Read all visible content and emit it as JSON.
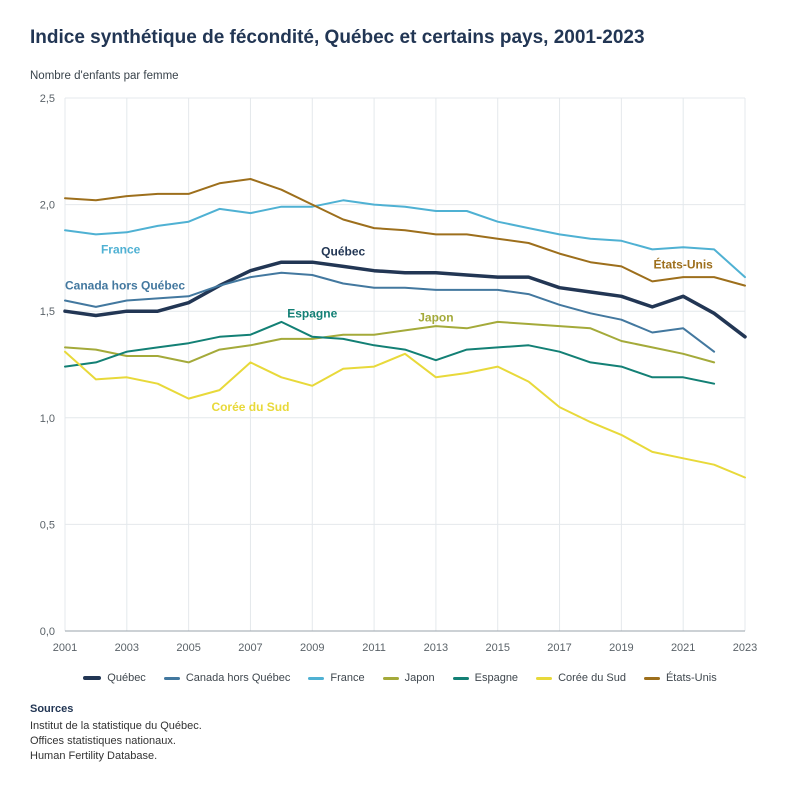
{
  "page": {
    "title": "Indice synthétique de fécondité, Québec et certains pays, 2001-2023",
    "y_axis_title": "Nombre d'enfants par femme"
  },
  "chart_data": {
    "type": "line",
    "title": "Indice synthétique de fécondité, Québec et certains pays, 2001-2023",
    "ylabel": "Nombre d'enfants par femme",
    "ylim": [
      0,
      2.5
    ],
    "grid": true,
    "legend_position": "bottom",
    "x": [
      2001,
      2002,
      2003,
      2004,
      2005,
      2006,
      2007,
      2008,
      2009,
      2010,
      2011,
      2012,
      2013,
      2014,
      2015,
      2016,
      2017,
      2018,
      2019,
      2020,
      2021,
      2022,
      2023
    ],
    "x_ticks": [
      2001,
      2003,
      2005,
      2007,
      2009,
      2011,
      2013,
      2015,
      2017,
      2019,
      2021,
      2023
    ],
    "y_ticks": [
      {
        "value": 0.0,
        "label": "0,0"
      },
      {
        "value": 0.5,
        "label": "0,5"
      },
      {
        "value": 1.0,
        "label": "1,0"
      },
      {
        "value": 1.5,
        "label": "1,5"
      },
      {
        "value": 2.0,
        "label": "2,0"
      },
      {
        "value": 2.5,
        "label": "2,5"
      }
    ],
    "series": [
      {
        "name": "Québec",
        "color": "#223654",
        "width": 3.5,
        "values": [
          1.5,
          1.48,
          1.5,
          1.5,
          1.54,
          1.62,
          1.69,
          1.73,
          1.73,
          1.71,
          1.69,
          1.68,
          1.68,
          1.67,
          1.66,
          1.66,
          1.61,
          1.59,
          1.57,
          1.52,
          1.57,
          1.49,
          1.38
        ]
      },
      {
        "name": "Canada hors Québec",
        "color": "#43789f",
        "width": 2,
        "values": [
          1.55,
          1.52,
          1.55,
          1.56,
          1.57,
          1.62,
          1.66,
          1.68,
          1.67,
          1.63,
          1.61,
          1.61,
          1.6,
          1.6,
          1.6,
          1.58,
          1.53,
          1.49,
          1.46,
          1.4,
          1.42,
          1.31,
          null
        ]
      },
      {
        "name": "France",
        "color": "#4fb1d3",
        "width": 2,
        "values": [
          1.88,
          1.86,
          1.87,
          1.9,
          1.92,
          1.98,
          1.96,
          1.99,
          1.99,
          2.02,
          2.0,
          1.99,
          1.97,
          1.97,
          1.92,
          1.89,
          1.86,
          1.84,
          1.83,
          1.79,
          1.8,
          1.79,
          1.66
        ]
      },
      {
        "name": "Japon",
        "color": "#a4aa3a",
        "width": 2,
        "values": [
          1.33,
          1.32,
          1.29,
          1.29,
          1.26,
          1.32,
          1.34,
          1.37,
          1.37,
          1.39,
          1.39,
          1.41,
          1.43,
          1.42,
          1.45,
          1.44,
          1.43,
          1.42,
          1.36,
          1.33,
          1.3,
          1.26,
          null
        ]
      },
      {
        "name": "Espagne",
        "color": "#138075",
        "width": 2,
        "values": [
          1.24,
          1.26,
          1.31,
          1.33,
          1.35,
          1.38,
          1.39,
          1.45,
          1.38,
          1.37,
          1.34,
          1.32,
          1.27,
          1.32,
          1.33,
          1.34,
          1.31,
          1.26,
          1.24,
          1.19,
          1.19,
          1.16,
          null
        ]
      },
      {
        "name": "Corée du Sud",
        "color": "#e8d93a",
        "width": 2,
        "values": [
          1.31,
          1.18,
          1.19,
          1.16,
          1.09,
          1.13,
          1.26,
          1.19,
          1.15,
          1.23,
          1.24,
          1.3,
          1.19,
          1.21,
          1.24,
          1.17,
          1.05,
          0.98,
          0.92,
          0.84,
          0.81,
          0.78,
          0.72
        ]
      },
      {
        "name": "États-Unis",
        "color": "#9d6f1c",
        "width": 2,
        "values": [
          2.03,
          2.02,
          2.04,
          2.05,
          2.05,
          2.1,
          2.12,
          2.07,
          2.0,
          1.93,
          1.89,
          1.88,
          1.86,
          1.86,
          1.84,
          1.82,
          1.77,
          1.73,
          1.71,
          1.64,
          1.66,
          1.66,
          1.62
        ]
      }
    ],
    "annotations": [
      {
        "text": "France",
        "series": "France",
        "x": 2002.8,
        "y": 1.79,
        "align": "middle"
      },
      {
        "text": "Canada hors Québec",
        "series": "Canada hors Québec",
        "x": 2001.0,
        "y": 1.62,
        "align": "start"
      },
      {
        "text": "Québec",
        "series": "Québec",
        "x": 2010.0,
        "y": 1.78,
        "align": "middle"
      },
      {
        "text": "Espagne",
        "series": "Espagne",
        "x": 2009.0,
        "y": 1.49,
        "align": "middle"
      },
      {
        "text": "Japon",
        "series": "Japon",
        "x": 2013.0,
        "y": 1.47,
        "align": "middle"
      },
      {
        "text": "Corée du Sud",
        "series": "Corée du Sud",
        "x": 2007.0,
        "y": 1.05,
        "align": "middle"
      },
      {
        "text": "États-Unis",
        "series": "États-Unis",
        "x": 2021.0,
        "y": 1.72,
        "align": "middle"
      }
    ]
  },
  "sources": {
    "heading": "Sources",
    "lines": [
      "Institut de la statistique du Québec.",
      "Offices statistiques nationaux.",
      "Human Fertility Database."
    ]
  },
  "colors": {
    "title": "#223654",
    "gridline": "#e4e8ec",
    "baseline": "#9aa3ab",
    "tick_text": "#5a6268"
  }
}
